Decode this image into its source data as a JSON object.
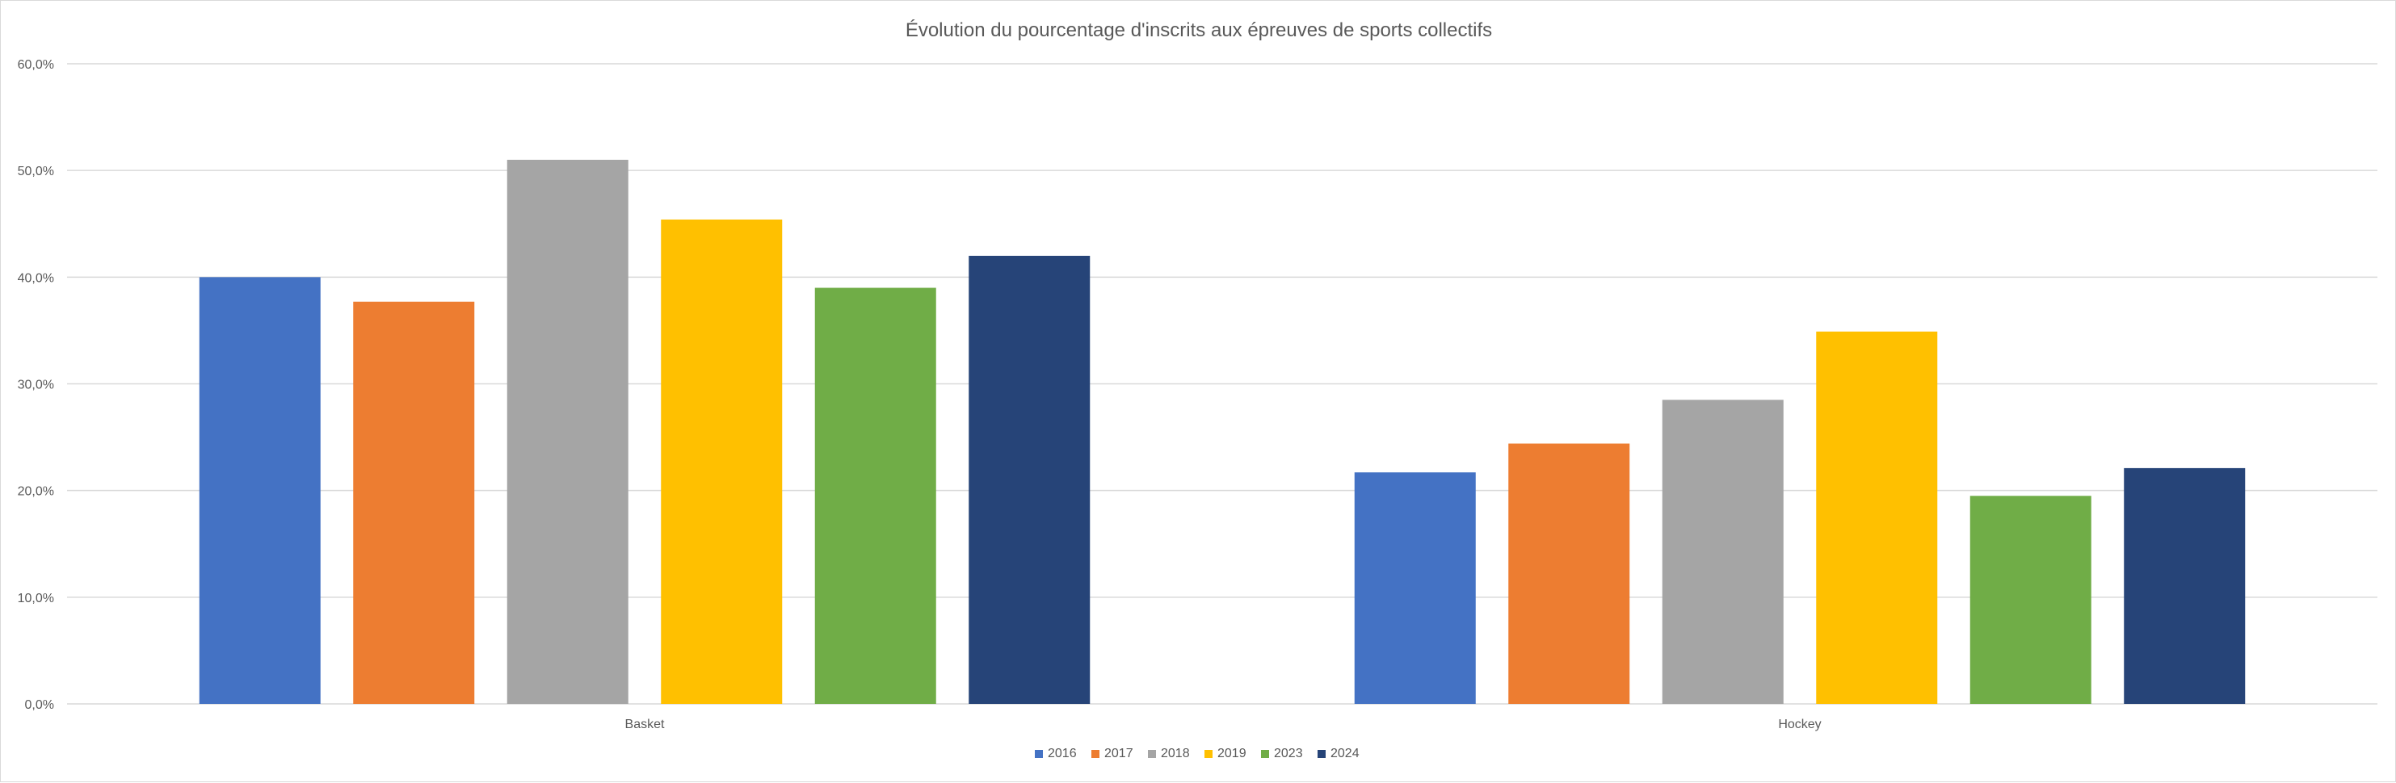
{
  "chart_data": {
    "type": "bar",
    "title": "Évolution du pourcentage d'inscrits aux épreuves de sports collectifs",
    "xlabel": "",
    "ylabel": "",
    "categories": [
      "Basket",
      "Hockey"
    ],
    "series": [
      {
        "name": "2016",
        "color": "#4472c4",
        "values": [
          40.0,
          21.7
        ]
      },
      {
        "name": "2017",
        "color": "#ed7d31",
        "values": [
          37.7,
          24.4
        ]
      },
      {
        "name": "2018",
        "color": "#a5a5a5",
        "values": [
          51.0,
          28.5
        ]
      },
      {
        "name": "2019",
        "color": "#ffc000",
        "values": [
          45.4,
          34.9
        ]
      },
      {
        "name": "2023",
        "color": "#70ad47",
        "values": [
          39.0,
          19.5
        ]
      },
      {
        "name": "2024",
        "color": "#264478",
        "values": [
          42.0,
          22.1
        ]
      }
    ],
    "ylim": [
      0,
      60
    ],
    "yticks": [
      0,
      10,
      20,
      30,
      40,
      50,
      60
    ],
    "ytick_labels": [
      "0,0%",
      "10,0%",
      "20,0%",
      "30,0%",
      "40,0%",
      "50,0%",
      "60,0%"
    ],
    "grid": true,
    "legend_position": "bottom",
    "colors": {
      "gridline": "#d9d9d9",
      "axis_text": "#595959",
      "border": "#d9d9d9"
    }
  }
}
